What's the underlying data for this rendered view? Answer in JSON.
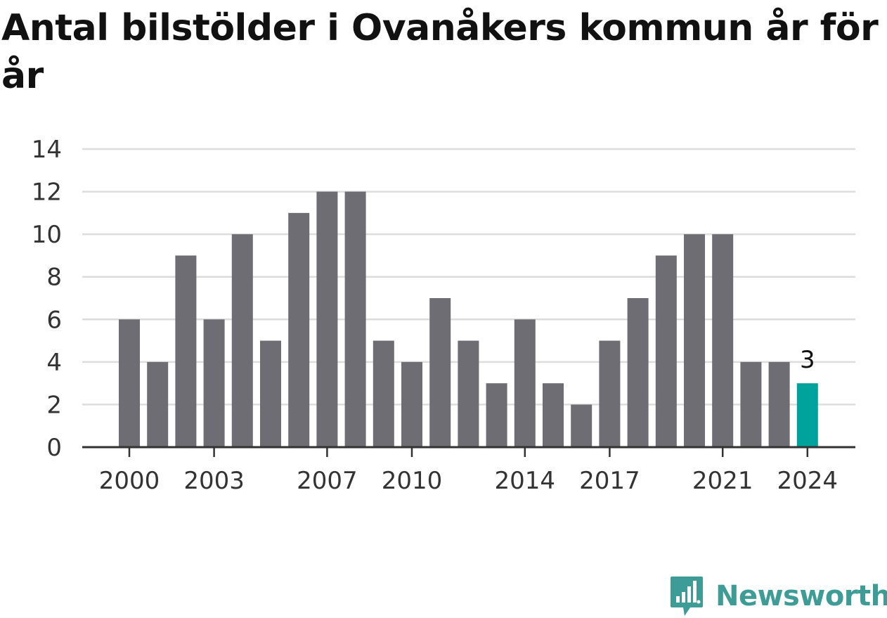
{
  "chart_data": {
    "type": "bar",
    "title": "Antal bilstölder i Ovanåkers kommun år för år",
    "xlabel": "",
    "ylabel": "",
    "categories": [
      "2000",
      "2001",
      "2002",
      "2003",
      "2004",
      "2005",
      "2006",
      "2007",
      "2008",
      "2009",
      "2010",
      "2011",
      "2012",
      "2013",
      "2014",
      "2015",
      "2016",
      "2017",
      "2018",
      "2019",
      "2020",
      "2021",
      "2022",
      "2023",
      "2024"
    ],
    "values": [
      6,
      4,
      9,
      6,
      10,
      5,
      11,
      12,
      12,
      5,
      4,
      7,
      5,
      3,
      6,
      3,
      2,
      5,
      7,
      9,
      10,
      10,
      4,
      4,
      3
    ],
    "x_tick_labels": [
      "2000",
      "2003",
      "2007",
      "2010",
      "2014",
      "2017",
      "2021",
      "2024"
    ],
    "y_ticks": [
      0,
      2,
      4,
      6,
      8,
      10,
      12,
      14
    ],
    "ylim": [
      0,
      14
    ],
    "grid": true,
    "legend": "none",
    "highlight": {
      "category": "2024",
      "label": "3"
    },
    "colors": {
      "bar": "#6e6d73",
      "highlight": "#00a39b",
      "grid": "#dddddd",
      "axis": "#333333"
    }
  },
  "brand": {
    "name": "Newsworthy",
    "icon": "bar-chart-speech-bubble-icon",
    "color": "#3e9c97"
  }
}
